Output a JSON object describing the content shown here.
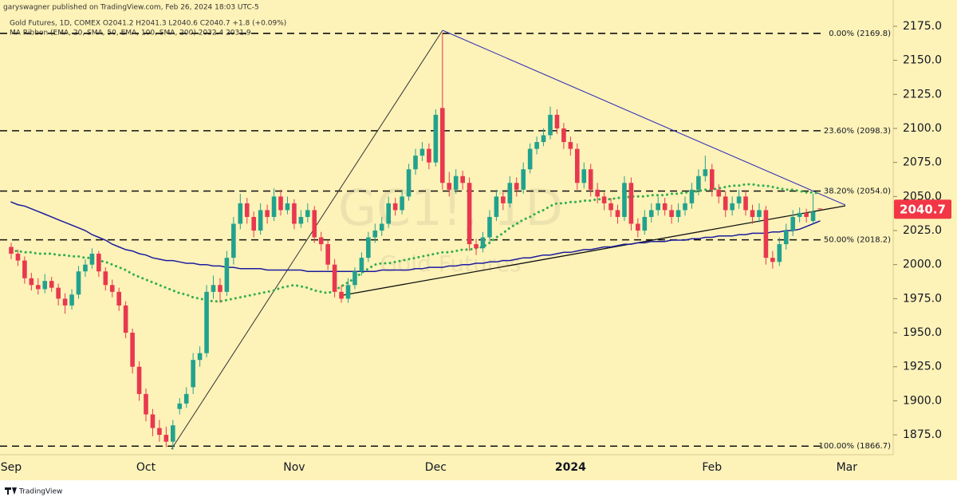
{
  "chart_data": {
    "type": "candlestick",
    "publisher": "garyswagner published on TradingView.com, Feb 26, 2024 18:03 UTC-5",
    "header": "Gold Futures, 1D, COMEX  O2041.2  H2041.3  L2040.6  C2040.7  +1.8 (+0.09%)",
    "indicator": "MA Ribbon (EMA, 20, SMA, 50, EMA, 100, SMA, 200)  2032.4  2031.9",
    "watermark": "GC1!, 1D",
    "watermark_sub": "Gold Futures",
    "branding": "TradingView",
    "up_color": "#22a28e",
    "down_color": "#e8384f",
    "background": "#fdf2b8",
    "categories": [
      "Sep",
      null,
      null,
      null,
      null,
      null,
      null,
      null,
      null,
      null,
      null,
      null,
      null,
      null,
      null,
      null,
      null,
      null,
      null,
      null,
      "Oct",
      null,
      null,
      null,
      null,
      null,
      null,
      null,
      null,
      null,
      null,
      null,
      null,
      null,
      null,
      null,
      null,
      null,
      null,
      null,
      null,
      null,
      "Nov",
      null,
      null,
      null,
      null,
      null,
      null,
      null,
      null,
      null,
      null,
      null,
      null,
      null,
      null,
      null,
      null,
      null,
      null,
      null,
      null,
      "Dec",
      null,
      null,
      null,
      null,
      null,
      null,
      null,
      null,
      null,
      null,
      null,
      null,
      null,
      null,
      null,
      null,
      null,
      null,
      null,
      "2024",
      null,
      null,
      null,
      null,
      null,
      null,
      null,
      null,
      null,
      null,
      null,
      null,
      null,
      null,
      null,
      null,
      null,
      null,
      null,
      null,
      "Feb",
      null,
      null,
      null,
      null,
      null,
      null,
      null,
      null,
      null,
      null,
      null,
      null,
      null,
      null,
      null,
      null,
      null,
      null,
      null,
      "Mar"
    ],
    "ohlc": [
      [
        2013,
        2016,
        2004,
        2008
      ],
      [
        2008,
        2011,
        1999,
        2003
      ],
      [
        2003,
        2006,
        1986,
        1990
      ],
      [
        1990,
        1994,
        1981,
        1985
      ],
      [
        1985,
        1990,
        1978,
        1982
      ],
      [
        1982,
        1993,
        1979,
        1988
      ],
      [
        1988,
        1991,
        1980,
        1983
      ],
      [
        1983,
        1986,
        1970,
        1975
      ],
      [
        1975,
        1979,
        1964,
        1970
      ],
      [
        1970,
        1982,
        1967,
        1978
      ],
      [
        1978,
        1999,
        1975,
        1995
      ],
      [
        1995,
        2004,
        1991,
        2000
      ],
      [
        2000,
        2012,
        1997,
        2008
      ],
      [
        2008,
        2010,
        1991,
        1995
      ],
      [
        1995,
        1998,
        1981,
        1985
      ],
      [
        1985,
        1989,
        1976,
        1980
      ],
      [
        1980,
        1983,
        1966,
        1970
      ],
      [
        1970,
        1973,
        1946,
        1950
      ],
      [
        1950,
        1953,
        1920,
        1925
      ],
      [
        1925,
        1929,
        1900,
        1905
      ],
      [
        1905,
        1909,
        1885,
        1890
      ],
      [
        1890,
        1894,
        1874,
        1880
      ],
      [
        1880,
        1886,
        1870,
        1875
      ],
      [
        1875,
        1881,
        1866,
        1870
      ],
      [
        1870,
        1886,
        1864,
        1882
      ],
      [
        1894,
        1902,
        1890,
        1898
      ],
      [
        1898,
        1910,
        1895,
        1905
      ],
      [
        1910,
        1935,
        1905,
        1930
      ],
      [
        1930,
        1940,
        1925,
        1935
      ],
      [
        1935,
        1985,
        1932,
        1980
      ],
      [
        1980,
        1992,
        1975,
        1985
      ],
      [
        1985,
        1990,
        1972,
        1980
      ],
      [
        1980,
        2010,
        1977,
        2005
      ],
      [
        2005,
        2035,
        2000,
        2030
      ],
      [
        2030,
        2052,
        2026,
        2045
      ],
      [
        2045,
        2049,
        2030,
        2035
      ],
      [
        2035,
        2039,
        2020,
        2025
      ],
      [
        2025,
        2045,
        2022,
        2040
      ],
      [
        2040,
        2044,
        2030,
        2035
      ],
      [
        2035,
        2056,
        2032,
        2050
      ],
      [
        2050,
        2055,
        2036,
        2040
      ],
      [
        2040,
        2050,
        2037,
        2045
      ],
      [
        2045,
        2048,
        2026,
        2030
      ],
      [
        2030,
        2040,
        2027,
        2035
      ],
      [
        2035,
        2045,
        2031,
        2040
      ],
      [
        2040,
        2043,
        2016,
        2020
      ],
      [
        2020,
        2024,
        2010,
        2015
      ],
      [
        2015,
        2018,
        1996,
        2000
      ],
      [
        2000,
        2004,
        1976,
        1980
      ],
      [
        1980,
        1985,
        1972,
        1975
      ],
      [
        1975,
        1990,
        1972,
        1985
      ],
      [
        1985,
        1998,
        1982,
        1995
      ],
      [
        1995,
        2009,
        1992,
        2005
      ],
      [
        2005,
        2024,
        2002,
        2020
      ],
      [
        2020,
        2030,
        2016,
        2025
      ],
      [
        2025,
        2035,
        2021,
        2030
      ],
      [
        2030,
        2050,
        2027,
        2045
      ],
      [
        2045,
        2049,
        2036,
        2040
      ],
      [
        2040,
        2055,
        2037,
        2050
      ],
      [
        2050,
        2074,
        2047,
        2070
      ],
      [
        2070,
        2085,
        2066,
        2080
      ],
      [
        2080,
        2090,
        2076,
        2085
      ],
      [
        2085,
        2089,
        2070,
        2075
      ],
      [
        2075,
        2114,
        2072,
        2110
      ],
      [
        2115,
        2170,
        2055,
        2060
      ],
      [
        2060,
        2068,
        2050,
        2055
      ],
      [
        2055,
        2070,
        2052,
        2065
      ],
      [
        2065,
        2069,
        2055,
        2060
      ],
      [
        2060,
        2064,
        2010,
        2015
      ],
      [
        2015,
        2019,
        2007,
        2012
      ],
      [
        2012,
        2024,
        2009,
        2020
      ],
      [
        2020,
        2040,
        2017,
        2035
      ],
      [
        2035,
        2055,
        2032,
        2050
      ],
      [
        2050,
        2053,
        2040,
        2045
      ],
      [
        2045,
        2065,
        2042,
        2060
      ],
      [
        2060,
        2064,
        2050,
        2055
      ],
      [
        2055,
        2075,
        2052,
        2070
      ],
      [
        2070,
        2089,
        2067,
        2085
      ],
      [
        2085,
        2094,
        2081,
        2090
      ],
      [
        2090,
        2100,
        2087,
        2095
      ],
      [
        2095,
        2116,
        2092,
        2110
      ],
      [
        2110,
        2114,
        2096,
        2100
      ],
      [
        2100,
        2104,
        2085,
        2090
      ],
      [
        2090,
        2094,
        2080,
        2085
      ],
      [
        2085,
        2089,
        2055,
        2060
      ],
      [
        2060,
        2075,
        2056,
        2070
      ],
      [
        2070,
        2074,
        2050,
        2055
      ],
      [
        2055,
        2060,
        2045,
        2050
      ],
      [
        2050,
        2053,
        2040,
        2045
      ],
      [
        2045,
        2049,
        2035,
        2040
      ],
      [
        2040,
        2044,
        2030,
        2035
      ],
      [
        2035,
        2065,
        2032,
        2060
      ],
      [
        2060,
        2064,
        2025,
        2030
      ],
      [
        2030,
        2034,
        2020,
        2025
      ],
      [
        2025,
        2040,
        2022,
        2035
      ],
      [
        2035,
        2045,
        2031,
        2040
      ],
      [
        2040,
        2050,
        2036,
        2045
      ],
      [
        2045,
        2049,
        2036,
        2040
      ],
      [
        2040,
        2044,
        2030,
        2035
      ],
      [
        2035,
        2045,
        2031,
        2040
      ],
      [
        2040,
        2050,
        2036,
        2045
      ],
      [
        2045,
        2060,
        2041,
        2055
      ],
      [
        2055,
        2070,
        2051,
        2065
      ],
      [
        2065,
        2080,
        2061,
        2070
      ],
      [
        2070,
        2074,
        2050,
        2055
      ],
      [
        2055,
        2059,
        2045,
        2050
      ],
      [
        2050,
        2054,
        2035,
        2040
      ],
      [
        2040,
        2050,
        2036,
        2045
      ],
      [
        2045,
        2055,
        2041,
        2050
      ],
      [
        2050,
        2054,
        2036,
        2040
      ],
      [
        2040,
        2044,
        2030,
        2035
      ],
      [
        2035,
        2045,
        2031,
        2040
      ],
      [
        2040,
        2043,
        2000,
        2005
      ],
      [
        2005,
        2010,
        1997,
        2002
      ],
      [
        2002,
        2020,
        1999,
        2015
      ],
      [
        2015,
        2030,
        2011,
        2025
      ],
      [
        2025,
        2040,
        2021,
        2035
      ],
      [
        2035,
        2042,
        2031,
        2038
      ],
      [
        2038,
        2041,
        2031,
        2035
      ],
      [
        2032,
        2052,
        2030,
        2038.9
      ],
      [
        2041.2,
        2041.3,
        2040.6,
        2040.7
      ],
      null,
      null,
      null,
      null
    ],
    "overlays": [
      {
        "color": "#2fae4f",
        "style": "dotted",
        "values": [
          2010,
          2010,
          2009,
          2009,
          2008,
          2008,
          2008,
          2007,
          2007,
          2006,
          2006,
          2005,
          2005,
          2003,
          2002,
          2000,
          1998,
          1996,
          1993,
          1991,
          1989,
          1987,
          1985,
          1983,
          1981,
          1979,
          1978,
          1976,
          1975,
          1974,
          1973,
          1973,
          1974,
          1975,
          1976,
          1977,
          1978,
          1979,
          1980,
          1981,
          1983,
          1984,
          1985,
          1984,
          1983,
          1981,
          1980,
          1979,
          1981,
          1984,
          1987,
          1990,
          1994,
          1997,
          2000,
          2001,
          2001,
          2002,
          2003,
          2004,
          2005,
          2006,
          2007,
          2008,
          2009,
          2009,
          2010,
          2011,
          2011,
          2012,
          2013,
          2016,
          2020,
          2023,
          2027,
          2030,
          2033,
          2035,
          2038,
          2040,
          2043,
          2045,
          2045,
          2046,
          2046,
          2047,
          2047,
          2048,
          2048,
          2048,
          2049,
          2049,
          2050,
          2050,
          2050,
          2051,
          2051,
          2051,
          2052,
          2052,
          2053,
          2053,
          2054,
          2055,
          2055,
          2056,
          2057,
          2058,
          2058,
          2059,
          2059,
          2058,
          2058,
          2057,
          2056,
          2055,
          2055,
          2054,
          2053,
          2053,
          2052,
          null,
          null,
          null,
          null
        ]
      },
      {
        "color": "#1c1c9e",
        "style": "solid",
        "values": [
          2046,
          2044,
          2043,
          2041,
          2039,
          2037,
          2035,
          2033,
          2031,
          2029,
          2027,
          2025,
          2022,
          2020,
          2018,
          2015,
          2013,
          2011,
          2010,
          2008,
          2007,
          2005,
          2004,
          2003,
          2003,
          2002,
          2001,
          2001,
          2000,
          2000,
          1999,
          1999,
          1998,
          1998,
          1997,
          1997,
          1997,
          1997,
          1996,
          1996,
          1996,
          1996,
          1996,
          1996,
          1995,
          1995,
          1995,
          1995,
          1995,
          1995,
          1995,
          1995,
          1995,
          1995,
          1995,
          1996,
          1996,
          1996,
          1996,
          1996,
          1997,
          1997,
          1998,
          1998,
          1998,
          1999,
          1999,
          2000,
          2000,
          2001,
          2001,
          2002,
          2002,
          2003,
          2003,
          2004,
          2005,
          2005,
          2006,
          2007,
          2007,
          2008,
          2009,
          2009,
          2010,
          2011,
          2011,
          2012,
          2013,
          2013,
          2014,
          2015,
          2015,
          2016,
          2016,
          2017,
          2017,
          2017,
          2018,
          2018,
          2018,
          2019,
          2019,
          2020,
          2020,
          2021,
          2021,
          2021,
          2022,
          2022,
          2023,
          2023,
          2023,
          2024,
          2024,
          2025,
          2025,
          2026,
          2028,
          2030,
          2032,
          null,
          null,
          null,
          null
        ]
      }
    ],
    "fib_levels": [
      {
        "value": 2169.8,
        "label": "0.00% (2169.8)"
      },
      {
        "value": 2098.3,
        "label": "23.60% (2098.3)"
      },
      {
        "value": 2054.0,
        "label": "38.20% (2054.0)"
      },
      {
        "value": 2018.2,
        "label": "50.00% (2018.2)"
      },
      {
        "value": 1866.7,
        "label": "100.00% (1866.7)"
      }
    ],
    "last_price_color": "#f23645",
    "ylim": [
      1860.4,
      2194.3
    ],
    "yticks": [
      {
        "value": 1875,
        "label": "1875.0"
      },
      {
        "value": 1900,
        "label": "1900.0"
      },
      {
        "value": 1925,
        "label": "1925.0"
      },
      {
        "value": 1950,
        "label": "1950.0"
      },
      {
        "value": 1975,
        "label": "1975.0"
      },
      {
        "value": 2000,
        "label": "2000.0"
      },
      {
        "value": 2025,
        "label": "2025.0"
      },
      {
        "value": 2050,
        "label": "2050.0"
      },
      {
        "value": 2075,
        "label": "2075.0"
      },
      {
        "value": 2100,
        "label": "2100.0"
      },
      {
        "value": 2125,
        "label": "2125.0"
      },
      {
        "value": 2150,
        "label": "2150.0"
      },
      {
        "value": 2175,
        "label": "2175.0"
      }
    ]
  }
}
